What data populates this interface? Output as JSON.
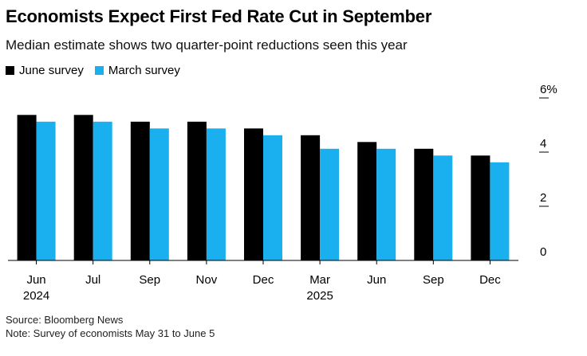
{
  "header": {
    "title": "Economists Expect First Fed Rate Cut in September",
    "subtitle": "Median estimate shows two quarter-point reductions seen this year"
  },
  "legend": [
    {
      "label": "June survey",
      "color": "#000000"
    },
    {
      "label": "March survey",
      "color": "#1ab0f0"
    }
  ],
  "chart_data": {
    "type": "bar",
    "categories": [
      "Jun 2024",
      "Jul",
      "Sep",
      "Nov",
      "Dec",
      "Mar 2025",
      "Jun",
      "Sep",
      "Dec"
    ],
    "category_lines": [
      [
        "Jun",
        "2024"
      ],
      [
        "Jul"
      ],
      [
        "Sep"
      ],
      [
        "Nov"
      ],
      [
        "Dec"
      ],
      [
        "Mar",
        "2025"
      ],
      [
        "Jun"
      ],
      [
        "Sep"
      ],
      [
        "Dec"
      ]
    ],
    "series": [
      {
        "name": "June survey",
        "color": "#000000",
        "values": [
          5.375,
          5.375,
          5.125,
          5.125,
          4.875,
          4.625,
          4.375,
          4.125,
          3.875
        ]
      },
      {
        "name": "March survey",
        "color": "#1ab0f0",
        "values": [
          5.125,
          5.125,
          4.875,
          4.875,
          4.625,
          4.125,
          4.125,
          3.875,
          3.625
        ]
      }
    ],
    "yticks": [
      "0",
      "2",
      "4",
      "6%"
    ],
    "ytick_values": [
      0,
      2,
      4,
      6
    ],
    "ylim": [
      0,
      6
    ],
    "y_axis_position": "right",
    "grid": false
  },
  "footer": {
    "source": "Source: Bloomberg News",
    "note": "Note: Survey of economists May 31 to June 5"
  }
}
